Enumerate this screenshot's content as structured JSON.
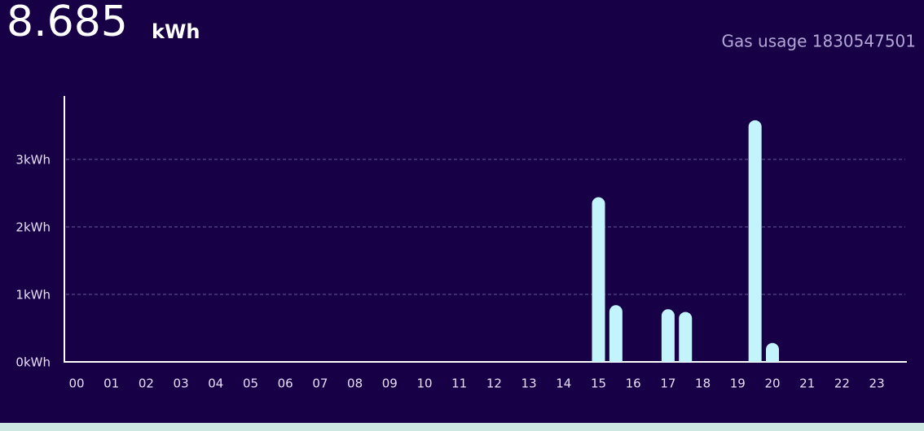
{
  "chart_data": {
    "type": "bar",
    "headline": {
      "value": "8.685",
      "unit": "kWh"
    },
    "title": "Gas usage 1830547501",
    "categories": [
      "00",
      null,
      "01",
      null,
      "02",
      null,
      "03",
      null,
      "04",
      null,
      "05",
      null,
      "06",
      null,
      "07",
      null,
      "08",
      null,
      "09",
      null,
      "10",
      null,
      "11",
      null,
      "12",
      null,
      "13",
      null,
      "14",
      null,
      "15",
      null,
      "16",
      null,
      "17",
      null,
      "18",
      null,
      "19",
      null,
      "20",
      null,
      "21",
      null,
      "22",
      null,
      "23",
      null
    ],
    "values": [
      0,
      0,
      0,
      0,
      0,
      0,
      0,
      0,
      0,
      0,
      0,
      0,
      0,
      0,
      0,
      0,
      0,
      0,
      0,
      0,
      0,
      0,
      0,
      0,
      0,
      0,
      0,
      0,
      0,
      0,
      2.44,
      0.84,
      0,
      0,
      0.78,
      0.74,
      0,
      0,
      0,
      3.58,
      0.28,
      0,
      0,
      0,
      0,
      0,
      0,
      0
    ],
    "color": "#c3f4fb",
    "ylim": [
      0,
      3.94
    ],
    "yticks": [
      {
        "value": 0,
        "label": "0kWh"
      },
      {
        "value": 1,
        "label": "1kWh"
      },
      {
        "value": 2,
        "label": "2kWh"
      },
      {
        "value": 3,
        "label": "3kWh"
      }
    ],
    "grid": true
  }
}
